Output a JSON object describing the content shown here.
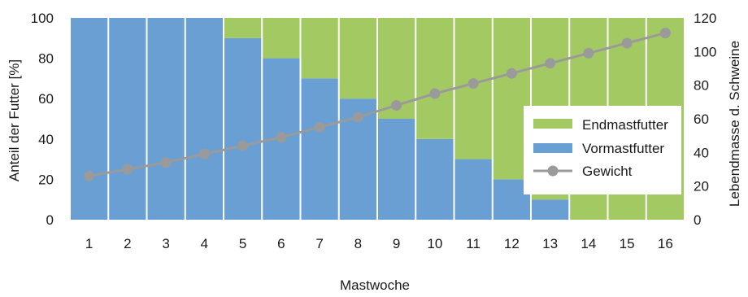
{
  "chart_data": {
    "type": "bar",
    "stacked": true,
    "xlabel": "Mastwoche",
    "ylabel": "Anteil der Futter [%]",
    "y2label": "Lebendmasse d. Schweine",
    "ylim": [
      0,
      100
    ],
    "y2lim": [
      0,
      120
    ],
    "yticks": [
      "0",
      "20",
      "40",
      "60",
      "80",
      "100"
    ],
    "y2ticks": [
      "0",
      "20",
      "40",
      "60",
      "80",
      "100",
      "120"
    ],
    "categories": [
      "1",
      "2",
      "3",
      "4",
      "5",
      "6",
      "7",
      "8",
      "9",
      "10",
      "11",
      "12",
      "13",
      "14",
      "15",
      "16"
    ],
    "series": [
      {
        "name": "Vormastfutter",
        "type": "bar",
        "axis": "left",
        "color": "#6a9fd4",
        "values": [
          100,
          100,
          100,
          100,
          90,
          80,
          70,
          60,
          50,
          40,
          30,
          20,
          10,
          0,
          0,
          0
        ]
      },
      {
        "name": "Endmastfutter",
        "type": "bar",
        "axis": "left",
        "color": "#a3c963",
        "values": [
          0,
          0,
          0,
          0,
          10,
          20,
          30,
          40,
          50,
          60,
          70,
          80,
          90,
          100,
          100,
          100
        ]
      },
      {
        "name": "Gewicht",
        "type": "line",
        "axis": "right",
        "color": "#9a9a9a",
        "values": [
          26,
          30,
          34,
          39,
          44,
          49,
          55,
          61,
          68,
          75,
          81,
          87,
          93,
          99,
          105,
          111
        ]
      }
    ],
    "legend": {
      "position": "right",
      "items": [
        "Endmastfutter",
        "Vormastfutter",
        "Gewicht"
      ]
    },
    "grid": false
  }
}
